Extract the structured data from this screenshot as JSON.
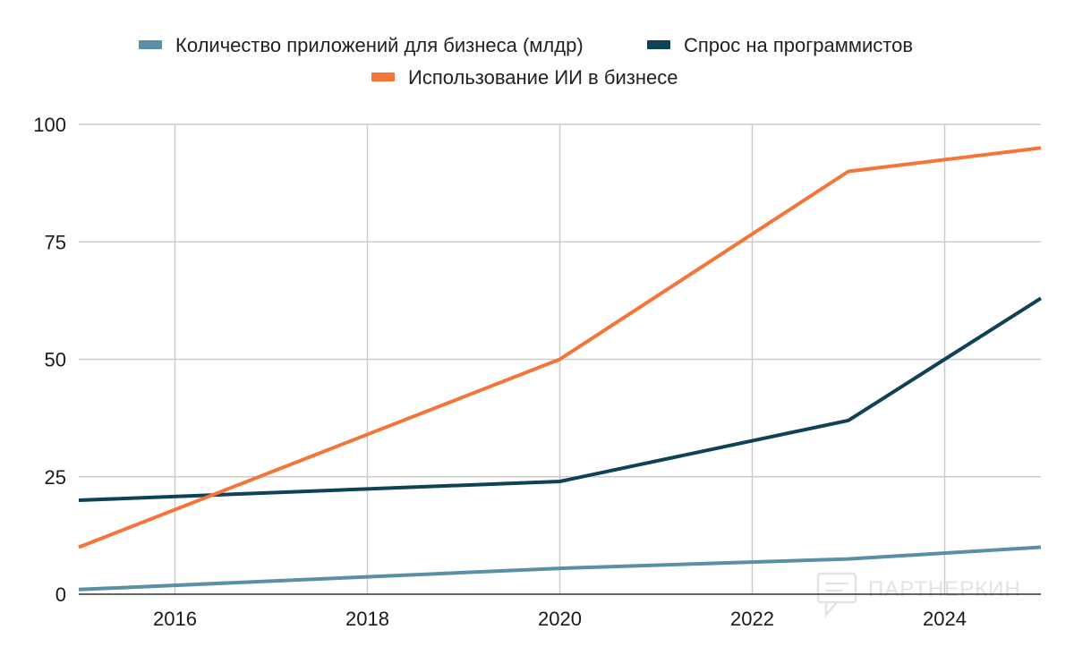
{
  "chart_data": {
    "type": "line",
    "x_ticks": [
      2016,
      2018,
      2020,
      2022,
      2024
    ],
    "xlim": [
      2015,
      2025
    ],
    "ylim": [
      0,
      100
    ],
    "y_ticks": [
      0,
      25,
      50,
      75,
      100
    ],
    "grid": true,
    "legend_position": "top",
    "series": [
      {
        "name": "Количество приложений для бизнеса (млдр)",
        "color": "#5b8fa8",
        "points": [
          [
            2015,
            1
          ],
          [
            2020,
            5.5
          ],
          [
            2023,
            7.5
          ],
          [
            2025,
            10
          ]
        ]
      },
      {
        "name": "Спрос на программистов",
        "color": "#0f4157",
        "points": [
          [
            2015,
            20
          ],
          [
            2020,
            24
          ],
          [
            2023,
            37
          ],
          [
            2024,
            50
          ],
          [
            2025,
            63
          ]
        ]
      },
      {
        "name": "Использование ИИ в бизнесе",
        "color": "#f47537",
        "points": [
          [
            2015,
            10
          ],
          [
            2020,
            50
          ],
          [
            2023,
            90
          ],
          [
            2025,
            95
          ]
        ]
      }
    ]
  },
  "watermark": {
    "text": "ПАРТНЕРКИН",
    "icon": "chat-bubble-icon"
  }
}
